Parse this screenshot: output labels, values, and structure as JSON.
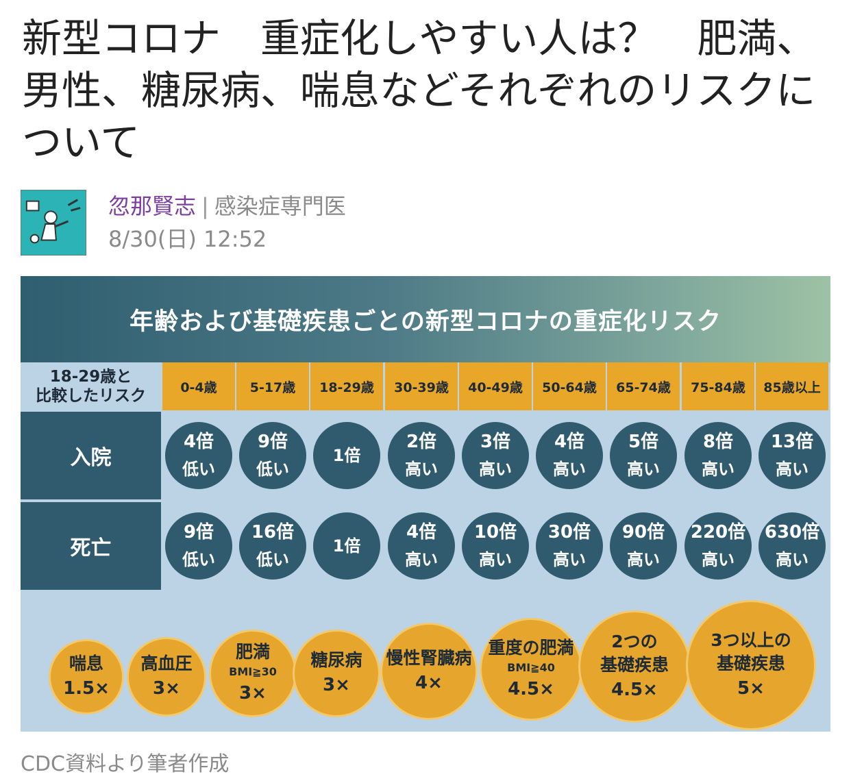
{
  "article": {
    "title": "新型コロナ　重症化しやすい人は？　肥満、男性、糖尿病、喘息などそれぞれのリスクについて",
    "author_name": "忽那賢志",
    "separator": "|",
    "author_role": "感染症専門医",
    "date": "8/30(日) 12:52"
  },
  "infographic": {
    "title": "年齢および基礎疾患ごとの新型コロナの重症化リスク",
    "reference_label": "18-29歳と\n比較したリスク",
    "age_groups": [
      "0-4歳",
      "5-17歳",
      "18-29歳",
      "30-39歳",
      "40-49歳",
      "50-64歳",
      "65-74歳",
      "75-84歳",
      "85歳以上"
    ],
    "rows": [
      {
        "label": "入院",
        "cells": [
          {
            "value": "4倍",
            "dir": "低い"
          },
          {
            "value": "9倍",
            "dir": "低い"
          },
          {
            "value": "1倍",
            "dir": ""
          },
          {
            "value": "2倍",
            "dir": "高い"
          },
          {
            "value": "3倍",
            "dir": "高い"
          },
          {
            "value": "4倍",
            "dir": "高い"
          },
          {
            "value": "5倍",
            "dir": "高い"
          },
          {
            "value": "8倍",
            "dir": "高い"
          },
          {
            "value": "13倍",
            "dir": "高い"
          }
        ]
      },
      {
        "label": "死亡",
        "cells": [
          {
            "value": "9倍",
            "dir": "低い"
          },
          {
            "value": "16倍",
            "dir": "低い"
          },
          {
            "value": "1倍",
            "dir": ""
          },
          {
            "value": "4倍",
            "dir": "高い"
          },
          {
            "value": "10倍",
            "dir": "高い"
          },
          {
            "value": "30倍",
            "dir": "高い"
          },
          {
            "value": "90倍",
            "dir": "高い"
          },
          {
            "value": "220倍",
            "dir": "高い"
          },
          {
            "value": "630倍",
            "dir": "高い"
          }
        ]
      }
    ],
    "conditions": [
      {
        "name": "喘息",
        "sub": "",
        "value": "1.5×"
      },
      {
        "name": "高血圧",
        "sub": "",
        "value": "3×"
      },
      {
        "name": "肥満",
        "sub": "BMI≧30",
        "value": "3×"
      },
      {
        "name": "糖尿病",
        "sub": "",
        "value": "3×"
      },
      {
        "name": "慢性腎臓病",
        "sub": "",
        "value": "4×"
      },
      {
        "name": "重度の肥満",
        "sub": "BMI≧40",
        "value": "4.5×"
      },
      {
        "name": "2つの\n基礎疾患",
        "sub": "",
        "value": "4.5×"
      },
      {
        "name": "3つ以上の\n基礎疾患",
        "sub": "",
        "value": "5×"
      }
    ],
    "colors": {
      "dark_teal": "#305a6e",
      "orange": "#e9a72a",
      "light_blue": "#bcd3e6"
    }
  },
  "caption": "CDC資料より筆者作成"
}
